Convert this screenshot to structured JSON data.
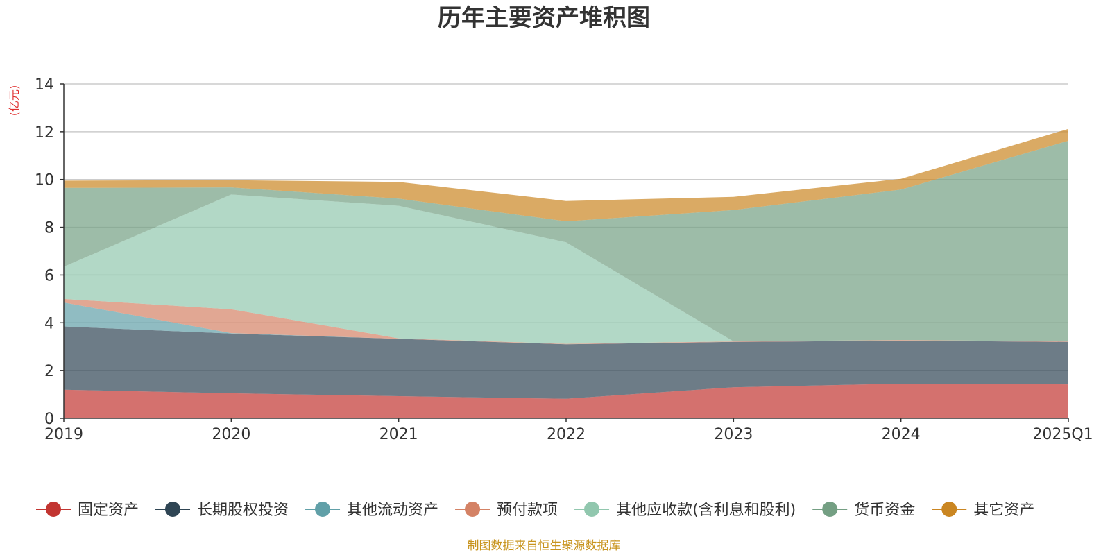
{
  "chart_data": {
    "type": "area",
    "stacked": true,
    "title": "历年主要资产堆积图",
    "unit_label": "(亿元)",
    "x": [
      "2019",
      "2020",
      "2021",
      "2022",
      "2023",
      "2024",
      "2025Q1"
    ],
    "ylim": [
      0,
      14
    ],
    "yticks": [
      "0",
      "2",
      "4",
      "6",
      "8",
      "10",
      "12",
      "14"
    ],
    "grid": true,
    "legend_position": "bottom",
    "series": [
      {
        "name": "固定资产",
        "color": "#c23531",
        "values": [
          1.2,
          1.05,
          0.93,
          0.82,
          1.3,
          1.45,
          1.42
        ]
      },
      {
        "name": "长期股权投资",
        "color": "#2f4554",
        "values": [
          2.65,
          2.5,
          2.4,
          2.28,
          1.9,
          1.8,
          1.78
        ]
      },
      {
        "name": "其他流动资产",
        "color": "#61a0a8",
        "values": [
          1.0,
          0.02,
          0.0,
          0.0,
          0.0,
          0.0,
          0.0
        ]
      },
      {
        "name": "预付款项",
        "color": "#d48265",
        "values": [
          0.15,
          1.0,
          0.02,
          0.02,
          0.02,
          0.03,
          0.02
        ]
      },
      {
        "name": "其他应收款(含利息和股利)",
        "color": "#91c7ae",
        "values": [
          1.35,
          4.8,
          5.55,
          4.25,
          0.0,
          0.0,
          0.0
        ]
      },
      {
        "name": "货币资金",
        "color": "#749f83",
        "values": [
          3.3,
          0.3,
          0.3,
          0.88,
          5.5,
          6.3,
          8.4
        ]
      },
      {
        "name": "其它资产",
        "color": "#ca8622",
        "values": [
          0.3,
          0.3,
          0.7,
          0.85,
          0.55,
          0.45,
          0.5
        ]
      }
    ]
  },
  "footer": {
    "source_text": "制图数据来自恒生聚源数据库",
    "source_color": "#c8941e"
  },
  "unit_color": "#e03030"
}
